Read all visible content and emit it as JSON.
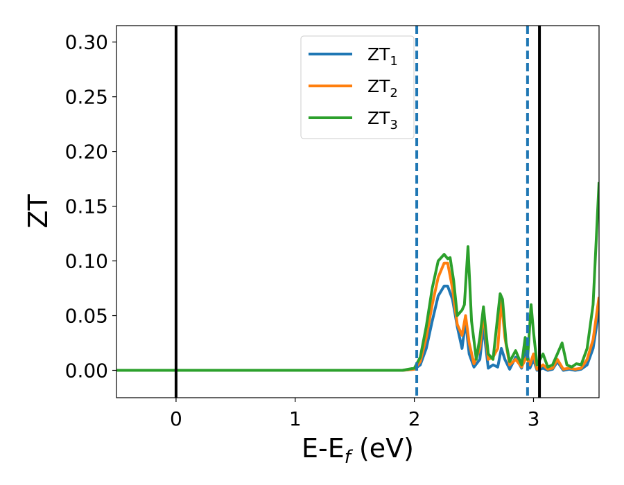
{
  "chart_data": {
    "type": "line",
    "xlabel": "E-E",
    "xlabel_sub": "f",
    "xlabel_unit": "(eV)",
    "ylabel": "ZT",
    "xlim": [
      -0.5,
      3.55
    ],
    "ylim": [
      -0.025,
      0.315
    ],
    "xticks": [
      0,
      1,
      2,
      3
    ],
    "xtick_labels": [
      "0",
      "1",
      "2",
      "3"
    ],
    "yticks": [
      0.0,
      0.05,
      0.1,
      0.15,
      0.2,
      0.25,
      0.3
    ],
    "ytick_labels": [
      "0.00",
      "0.05",
      "0.10",
      "0.15",
      "0.20",
      "0.25",
      "0.30"
    ],
    "grid": false,
    "legend_position": "top-center",
    "vlines": [
      {
        "x": 0.0,
        "color": "#000000",
        "style": "solid"
      },
      {
        "x": 3.05,
        "color": "#000000",
        "style": "solid"
      },
      {
        "x": 2.02,
        "color": "#1f77b4",
        "style": "dashed"
      },
      {
        "x": 2.95,
        "color": "#1f77b4",
        "style": "dashed"
      }
    ],
    "series": [
      {
        "name": "ZT",
        "sub": "1",
        "color": "#1f77b4",
        "x": [
          -0.5,
          1.9,
          2.0,
          2.05,
          2.1,
          2.15,
          2.2,
          2.25,
          2.28,
          2.32,
          2.36,
          2.4,
          2.43,
          2.46,
          2.5,
          2.55,
          2.58,
          2.62,
          2.66,
          2.7,
          2.73,
          2.76,
          2.8,
          2.85,
          2.9,
          2.94,
          2.97,
          3.0,
          3.03,
          3.08,
          3.12,
          3.16,
          3.2,
          3.25,
          3.3,
          3.35,
          3.4,
          3.45,
          3.5,
          3.55
        ],
        "y": [
          0.0,
          0.0,
          0.001,
          0.005,
          0.02,
          0.045,
          0.068,
          0.077,
          0.077,
          0.065,
          0.04,
          0.02,
          0.045,
          0.015,
          0.003,
          0.01,
          0.04,
          0.002,
          0.005,
          0.003,
          0.02,
          0.01,
          0.001,
          0.012,
          0.002,
          0.02,
          0.002,
          0.01,
          0.0,
          0.002,
          0.0,
          0.001,
          0.008,
          0.0,
          0.001,
          0.0,
          0.001,
          0.005,
          0.02,
          0.055
        ]
      },
      {
        "name": "ZT",
        "sub": "2",
        "color": "#ff7f0e",
        "x": [
          -0.5,
          1.9,
          2.0,
          2.05,
          2.1,
          2.15,
          2.2,
          2.25,
          2.28,
          2.32,
          2.36,
          2.4,
          2.43,
          2.46,
          2.5,
          2.55,
          2.58,
          2.62,
          2.66,
          2.7,
          2.73,
          2.76,
          2.8,
          2.85,
          2.9,
          2.94,
          2.97,
          3.0,
          3.03,
          3.08,
          3.12,
          3.16,
          3.2,
          3.25,
          3.3,
          3.35,
          3.4,
          3.45,
          3.5,
          3.55
        ],
        "y": [
          0.0,
          0.0,
          0.001,
          0.008,
          0.03,
          0.06,
          0.085,
          0.098,
          0.098,
          0.075,
          0.042,
          0.032,
          0.05,
          0.025,
          0.006,
          0.02,
          0.052,
          0.01,
          0.012,
          0.02,
          0.065,
          0.03,
          0.005,
          0.01,
          0.003,
          0.012,
          0.005,
          0.015,
          0.001,
          0.005,
          0.001,
          0.002,
          0.01,
          0.001,
          0.002,
          0.001,
          0.002,
          0.01,
          0.028,
          0.067
        ]
      },
      {
        "name": "ZT",
        "sub": "3",
        "color": "#2ca02c",
        "x": [
          -0.5,
          1.9,
          2.0,
          2.05,
          2.1,
          2.15,
          2.2,
          2.25,
          2.28,
          2.3,
          2.33,
          2.36,
          2.4,
          2.42,
          2.45,
          2.48,
          2.52,
          2.55,
          2.58,
          2.62,
          2.66,
          2.7,
          2.72,
          2.74,
          2.77,
          2.8,
          2.85,
          2.9,
          2.93,
          2.95,
          2.98,
          3.0,
          3.03,
          3.08,
          3.12,
          3.16,
          3.2,
          3.24,
          3.28,
          3.32,
          3.36,
          3.4,
          3.45,
          3.5,
          3.55
        ],
        "y": [
          0.0,
          0.0,
          0.002,
          0.012,
          0.04,
          0.075,
          0.1,
          0.106,
          0.102,
          0.103,
          0.082,
          0.05,
          0.055,
          0.06,
          0.113,
          0.045,
          0.01,
          0.03,
          0.058,
          0.015,
          0.01,
          0.05,
          0.07,
          0.065,
          0.025,
          0.008,
          0.018,
          0.005,
          0.03,
          0.01,
          0.06,
          0.035,
          0.005,
          0.015,
          0.003,
          0.005,
          0.015,
          0.025,
          0.005,
          0.003,
          0.006,
          0.005,
          0.02,
          0.06,
          0.172
        ]
      }
    ]
  }
}
